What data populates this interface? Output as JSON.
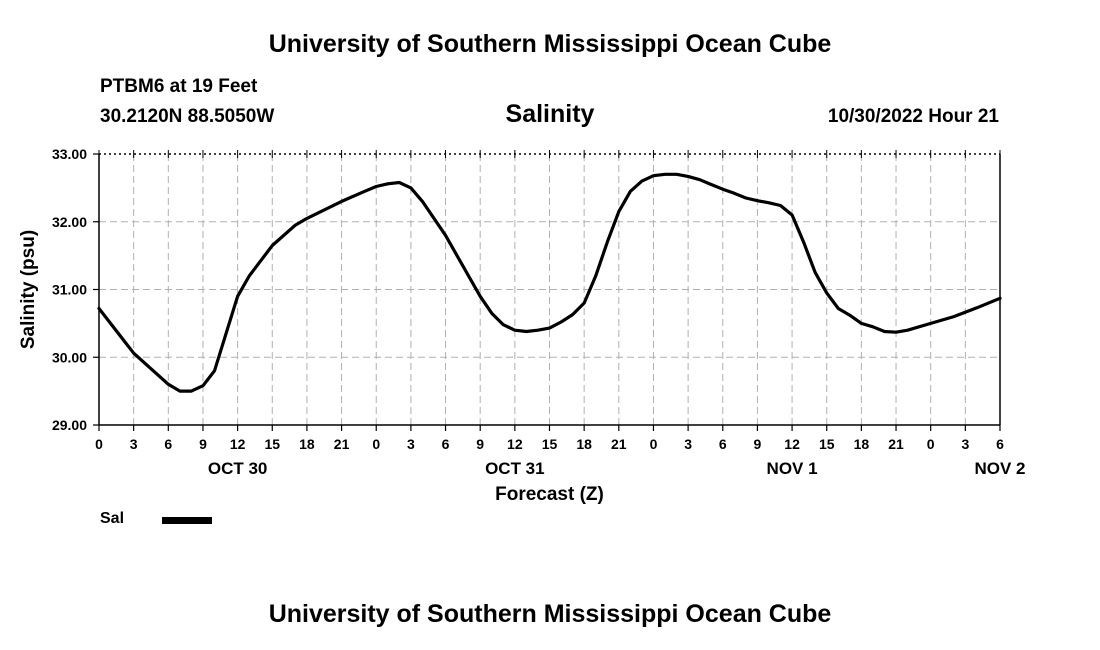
{
  "header": {
    "title": "University of Southern Mississippi Ocean Cube",
    "station": "PTBM6 at 19 Feet",
    "coords": "30.2120N  88.5050W",
    "chart_title": "Salinity",
    "run_time": "10/30/2022 Hour 21"
  },
  "footer": {
    "title": "University of Southern Mississippi Ocean Cube"
  },
  "legend": {
    "label": "Sal"
  },
  "chart_data": {
    "type": "line",
    "title": "Salinity",
    "xlabel": "Forecast (Z)",
    "ylabel": "Salinity (psu)",
    "ylim": [
      29.0,
      33.0
    ],
    "yticks": [
      "29.00",
      "30.00",
      "31.00",
      "32.00",
      "33.00"
    ],
    "x_hour_labels": [
      "0",
      "3",
      "6",
      "9",
      "12",
      "15",
      "18",
      "21",
      "0",
      "3",
      "6",
      "9",
      "12",
      "15",
      "18",
      "21",
      "0",
      "3",
      "6",
      "9",
      "12",
      "15",
      "18",
      "21",
      "0",
      "3",
      "6"
    ],
    "day_labels": [
      {
        "label": "OCT 30",
        "hour": 12
      },
      {
        "label": "OCT 31",
        "hour": 36
      },
      {
        "label": "NOV 1",
        "hour": 60
      },
      {
        "label": "NOV 2",
        "hour": 78
      }
    ],
    "xlim_hours": [
      0,
      78
    ],
    "grid": true,
    "series": [
      {
        "name": "Sal",
        "color": "#000000",
        "hours": [
          0,
          3,
          6,
          7,
          8,
          9,
          10,
          12,
          13,
          15,
          17,
          18,
          21,
          23,
          24,
          25,
          26,
          27,
          28,
          30,
          32,
          33,
          34,
          35,
          36,
          37,
          38,
          39,
          40,
          41,
          42,
          43,
          44,
          45,
          46,
          47,
          48,
          49,
          50,
          51,
          52,
          53,
          54,
          55,
          56,
          57,
          58,
          59,
          60,
          61,
          62,
          63,
          64,
          65,
          66,
          67,
          68,
          69,
          70,
          72,
          74,
          76,
          78
        ],
        "values": [
          30.72,
          30.06,
          29.6,
          29.5,
          29.5,
          29.58,
          29.8,
          30.9,
          31.2,
          31.65,
          31.95,
          32.05,
          32.3,
          32.45,
          32.52,
          32.56,
          32.58,
          32.5,
          32.3,
          31.8,
          31.2,
          30.9,
          30.65,
          30.48,
          30.4,
          30.38,
          30.4,
          30.43,
          30.52,
          30.63,
          30.8,
          31.2,
          31.7,
          32.15,
          32.45,
          32.6,
          32.68,
          32.7,
          32.7,
          32.67,
          32.62,
          32.55,
          32.48,
          32.42,
          32.35,
          32.31,
          32.28,
          32.24,
          32.1,
          31.7,
          31.25,
          30.95,
          30.72,
          30.62,
          30.5,
          30.45,
          30.38,
          30.37,
          30.4,
          30.5,
          30.6,
          30.73,
          30.87
        ]
      }
    ]
  }
}
